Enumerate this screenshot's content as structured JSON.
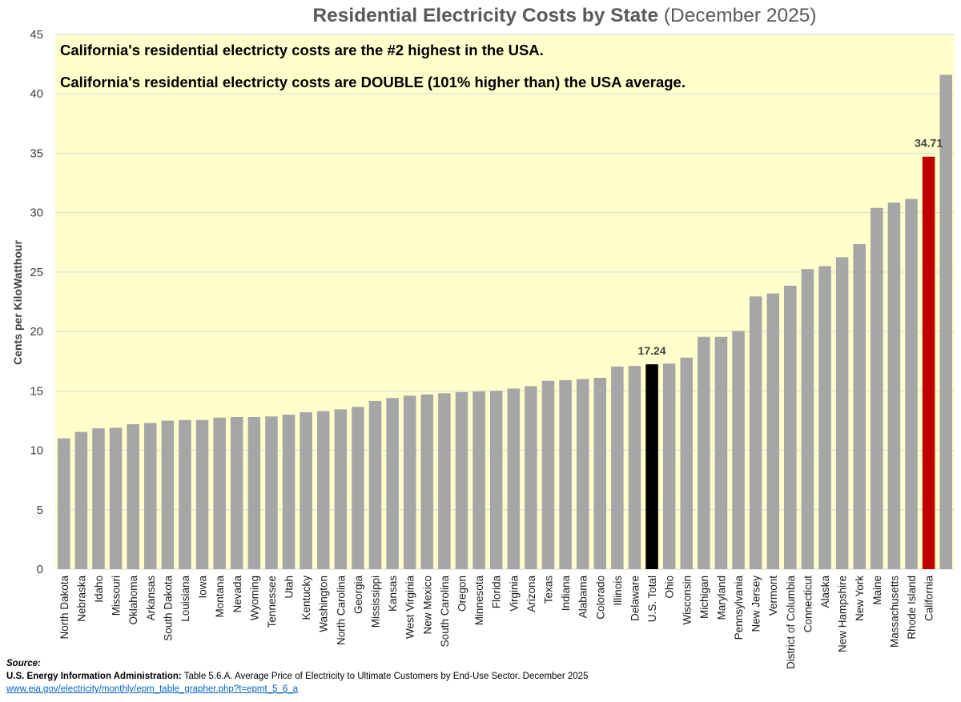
{
  "chart_data": {
    "type": "bar",
    "title": "Residential Electricity Costs by State",
    "subtitle": "(December 2025)",
    "ylabel": "Cents per KiloWatthour",
    "xlabel": "",
    "ylim": [
      0,
      45
    ],
    "yticks": [
      0,
      5,
      10,
      15,
      20,
      25,
      30,
      35,
      40,
      45
    ],
    "grid": true,
    "legend": "none",
    "annotations": [
      "California's residential electricty costs are the #2 highest in the USA.",
      "California's residential electricty costs are DOUBLE (101% higher than) the USA average."
    ],
    "categories": [
      "North Dakota",
      "Nebraska",
      "Idaho",
      "Missouri",
      "Oklahoma",
      "Arkansas",
      "South Dakota",
      "Louisiana",
      "Iowa",
      "Montana",
      "Nevada",
      "Wyoming",
      "Tennessee",
      "Utah",
      "Kentucky",
      "Washington",
      "North Carolina",
      "Georgia",
      "Mississippi",
      "Kansas",
      "West Virginia",
      "New Mexico",
      "South Carolina",
      "Oregon",
      "Minnesota",
      "Florida",
      "Virginia",
      "Arizona",
      "Texas",
      "Indiana",
      "Alabama",
      "Colorado",
      "Illinois",
      "Delaware",
      "U.S. Total",
      "Ohio",
      "Wisconsin",
      "Michigan",
      "Maryland",
      "Pennsylvania",
      "New Jersey",
      "Vermont",
      "District of Columbia",
      "Connecticut",
      "Alaska",
      "New Hampshire",
      "New York",
      "Maine",
      "Massachusetts",
      "Rhode Island",
      "California",
      ""
    ],
    "values": [
      11.0,
      11.55,
      11.85,
      11.9,
      12.2,
      12.3,
      12.5,
      12.55,
      12.55,
      12.75,
      12.8,
      12.8,
      12.85,
      13.0,
      13.2,
      13.3,
      13.45,
      13.65,
      14.15,
      14.4,
      14.6,
      14.7,
      14.8,
      14.9,
      14.95,
      15.0,
      15.2,
      15.4,
      15.85,
      15.9,
      16.0,
      16.1,
      17.05,
      17.1,
      17.24,
      17.3,
      17.8,
      19.55,
      19.55,
      20.05,
      22.95,
      23.2,
      23.85,
      25.25,
      25.5,
      26.25,
      27.35,
      30.4,
      30.85,
      31.15,
      34.71,
      41.6
    ],
    "data_labels": {
      "U.S. Total": "17.24",
      "California": "34.71"
    },
    "colors": {
      "default_bar": "#a6a6a6",
      "us_total_bar": "#000000",
      "california_bar": "#c00000",
      "plot_background": "#ffffcc",
      "gridline": "#d9d9d9"
    }
  },
  "source": {
    "heading": "Source:",
    "org": "U.S. Energy Information Administration:",
    "text": " Table 5.6.A. Average Price of Electricity to Ultimate Customers by End-Use Sector. December 2025",
    "url": "www.eia.gov/electricity/monthly/epm_table_grapher.php?t=epmt_5_6_a"
  }
}
